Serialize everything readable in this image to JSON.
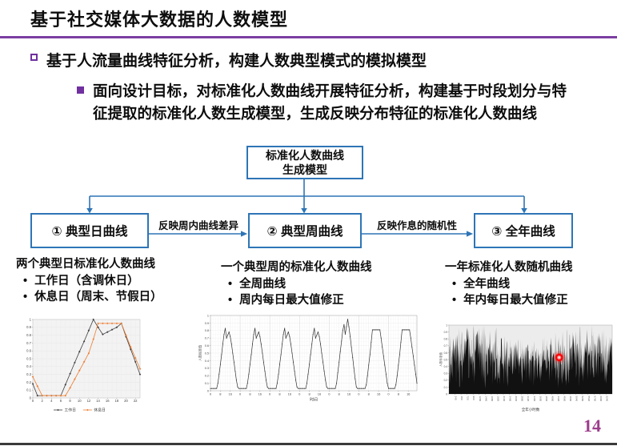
{
  "slide": {
    "title": "基于社交媒体大数据的人数模型",
    "page_number": "14",
    "accent_purple": "#7030A0",
    "box_blue": "#2E75B6",
    "page_number_color": "#9D3D8D"
  },
  "bullets": {
    "main": "基于人流量曲线特征分析，构建人数典型模式的模拟模型",
    "sub": "面向设计目标，对标准化人数曲线开展特征分析，构建基于时段划分与特征提取的标准化人数生成模型，生成反映分布特征的标准化人数曲线"
  },
  "flowchart": {
    "root_line1": "标准化人数曲线",
    "root_line2": "生成模型",
    "box1": "① 典型日曲线",
    "box2": "② 典型周曲线",
    "box3": "③ 全年曲线",
    "arrow1_label": "反映周内曲线差异",
    "arrow2_label": "反映作息的随机性"
  },
  "columns": [
    {
      "heading": "两个典型日标准化人数曲线",
      "items": [
        "工作日（含调休日）",
        "休息日（周末、节假日）"
      ]
    },
    {
      "heading": "一个典型周的标准化人数曲线",
      "items": [
        "全周曲线",
        "周内每日最大值修正"
      ]
    },
    {
      "heading": "一年标准化人数随机曲线",
      "items": [
        "全年曲线",
        "年内每日最大值修正"
      ]
    }
  ],
  "chart_data": [
    {
      "id": "typical-day-curves",
      "type": "line",
      "title": "两个典型日标准化人数曲线",
      "xlabel": "",
      "ylabel": "",
      "xlim": [
        0,
        23
      ],
      "ylim": [
        0,
        1
      ],
      "xticks": [
        0,
        2,
        4,
        6,
        8,
        10,
        12,
        14,
        16,
        18,
        20,
        22
      ],
      "ytick_step": 0.1,
      "legend_position": "bottom",
      "series": [
        {
          "name": "工作日",
          "color": "#3f3f3f",
          "values": [
            0.18,
            0.03,
            0.03,
            0.03,
            0.03,
            0.03,
            0.03,
            0.17,
            0.31,
            0.45,
            0.59,
            0.72,
            0.86,
            1,
            0.9,
            0.81,
            0.84,
            0.87,
            0.9,
            0.95,
            0.78,
            0.62,
            0.46,
            0.3
          ]
        },
        {
          "name": "休息日",
          "color": "#ED7D31",
          "values": [
            0.27,
            0.15,
            0.03,
            0.03,
            0.03,
            0.03,
            0.03,
            0.03,
            0.13,
            0.24,
            0.35,
            0.46,
            0.57,
            0.75,
            0.95,
            0.95,
            0.95,
            0.95,
            0.95,
            0.95,
            0.8,
            0.65,
            0.51,
            0.37
          ]
        }
      ]
    },
    {
      "id": "typical-week-curve",
      "type": "line",
      "title": "一个典型周的标准化人数曲线",
      "xlabel": "时间",
      "ylabel": "人数标准值",
      "ylim": [
        0,
        1
      ],
      "ytick_step": 0.1,
      "x_ticks_per_day": [
        "0",
        "8",
        "16"
      ],
      "days": 7,
      "color": "#333333",
      "series_name": "典型周标准化人数曲线",
      "day_sequence": [
        "weekday",
        "weekday",
        "weekday",
        "weekday",
        "friday",
        "weekend",
        "weekend"
      ],
      "day_patterns": {
        "weekday": [
          0.03,
          0.03,
          0.03,
          0.03,
          0.03,
          0.03,
          0.1,
          0.22,
          0.35,
          0.48,
          0.62,
          0.75,
          0.83,
          0.7,
          0.74,
          0.78,
          0.72,
          0.62,
          0.5,
          0.38,
          0.26,
          0.14,
          0.05,
          0.03
        ],
        "friday": [
          0.03,
          0.03,
          0.03,
          0.03,
          0.03,
          0.03,
          0.1,
          0.24,
          0.38,
          0.52,
          0.66,
          0.8,
          0.88,
          0.75,
          0.85,
          0.95,
          0.85,
          0.72,
          0.58,
          0.44,
          0.3,
          0.16,
          0.05,
          0.03
        ],
        "weekend": [
          0.03,
          0.03,
          0.03,
          0.03,
          0.03,
          0.03,
          0.08,
          0.2,
          0.34,
          0.48,
          0.64,
          0.81,
          0.81,
          0.81,
          0.81,
          0.81,
          0.81,
          0.81,
          0.7,
          0.58,
          0.46,
          0.34,
          0.22,
          0.1
        ]
      }
    },
    {
      "id": "annual-random-curve",
      "type": "area",
      "title": "一年标准化人数随机曲线",
      "xlabel": "全年小时数",
      "ylabel": "人数标准值",
      "ylim": [
        0,
        1
      ],
      "ytick_step": 0.1,
      "description": "全年逐时标准化人数随机曲线，呈密集黑色噪声带",
      "color": "#111111",
      "secondary_color": "#9a9a9a",
      "annotation": {
        "name": "laser-pointer-dot",
        "color": "#ff0000",
        "x_fraction": 0.675,
        "y_value": 0.53
      }
    }
  ]
}
